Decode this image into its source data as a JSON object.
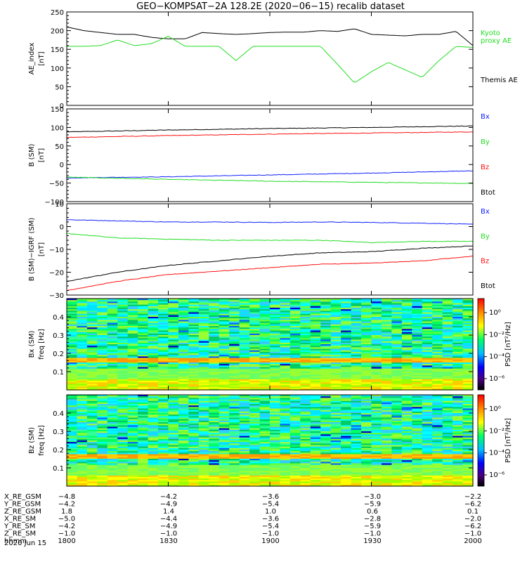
{
  "title": "GEO−KOMPSAT−2A 128.2E (2020−06−15) recalib dataset",
  "colors": {
    "black": "#000000",
    "green": "#22dd22",
    "red": "#ff1111",
    "blue": "#1122ff"
  },
  "panels": [
    {
      "id": "ae",
      "ylabel": [
        "AE_index",
        "[nT]"
      ],
      "ylim": [
        0,
        250
      ],
      "yticks": [
        0,
        50,
        100,
        150,
        200,
        250
      ],
      "legend": [
        {
          "text": "Kyoto",
          "color": "#22dd22"
        },
        {
          "text": "proxy AE",
          "color": "#22dd22"
        },
        {
          "text": "Themis AE",
          "color": "#000000"
        }
      ]
    },
    {
      "id": "bsm",
      "ylabel": [
        "B (SM)",
        "[nT]"
      ],
      "ylim": [
        -100,
        150
      ],
      "yticks": [
        -100,
        -50,
        0,
        50,
        100,
        150
      ],
      "legend": [
        {
          "text": "Bx",
          "color": "#1122ff"
        },
        {
          "text": "By",
          "color": "#22dd22"
        },
        {
          "text": "Bz",
          "color": "#ff1111"
        },
        {
          "text": "Btot",
          "color": "#000000"
        }
      ]
    },
    {
      "id": "bigrf",
      "ylabel": [
        "B (SM)−IGRF (SM)",
        "[nT]"
      ],
      "ylim": [
        -30,
        10
      ],
      "yticks": [
        -30,
        -20,
        -10,
        0,
        10
      ],
      "legend": [
        {
          "text": "Bx",
          "color": "#1122ff"
        },
        {
          "text": "By",
          "color": "#22dd22"
        },
        {
          "text": "Bz",
          "color": "#ff1111"
        },
        {
          "text": "Btot",
          "color": "#000000"
        }
      ]
    },
    {
      "id": "specbx",
      "ylabel": [
        "Bx (SM)",
        "freq [Hz]"
      ],
      "ylim": [
        0,
        0.5
      ],
      "yticks": [
        0.1,
        0.2,
        0.3,
        0.4
      ],
      "cbar_label": "PSD [nT²/Hz]",
      "cbar_ticks": [
        "10⁰",
        "10⁻²",
        "10⁻⁴",
        "10⁻⁶"
      ]
    },
    {
      "id": "specbz",
      "ylabel": [
        "Bz (SM)",
        "freq [Hz]"
      ],
      "ylim": [
        0,
        0.5
      ],
      "yticks": [
        0.1,
        0.2,
        0.3,
        0.4
      ],
      "cbar_label": "PSD [nT²/Hz]",
      "cbar_ticks": [
        "10⁰",
        "10⁻²",
        "10⁻⁴",
        "10⁻⁶"
      ]
    }
  ],
  "chart_data": [
    {
      "type": "line",
      "title": "GEO−KOMPSAT−2A 128.2E (2020−06−15) recalib dataset",
      "ylabel": "AE_index [nT]",
      "x": [
        "18:00",
        "18:05",
        "18:10",
        "18:15",
        "18:20",
        "18:25",
        "18:30",
        "18:35",
        "18:40",
        "18:45",
        "18:50",
        "18:55",
        "19:00",
        "19:05",
        "19:10",
        "19:15",
        "19:20",
        "19:25",
        "19:30",
        "19:35",
        "19:40",
        "19:45",
        "19:50",
        "19:55",
        "20:00"
      ],
      "ylim": [
        0,
        250
      ],
      "series": [
        {
          "name": "Themis AE",
          "color": "#000000",
          "values": [
            210,
            200,
            195,
            190,
            190,
            182,
            178,
            178,
            195,
            192,
            190,
            192,
            195,
            196,
            196,
            200,
            198,
            205,
            190,
            188,
            186,
            190,
            190,
            198,
            160
          ]
        },
        {
          "name": "Kyoto proxy AE",
          "color": "#22dd22",
          "values": [
            158,
            158,
            160,
            175,
            160,
            165,
            185,
            158,
            158,
            158,
            120,
            158,
            158,
            158,
            158,
            158,
            110,
            60,
            90,
            115,
            95,
            75,
            120,
            158,
            155
          ]
        }
      ]
    },
    {
      "type": "line",
      "ylabel": "B (SM) [nT]",
      "x": [
        "18:00",
        "18:30",
        "19:00",
        "19:30",
        "20:00"
      ],
      "ylim": [
        -100,
        150
      ],
      "series": [
        {
          "name": "Btot",
          "color": "#000000",
          "values": [
            88,
            93,
            97,
            100,
            104
          ]
        },
        {
          "name": "Bz",
          "color": "#ff1111",
          "values": [
            73,
            78,
            82,
            85,
            88
          ]
        },
        {
          "name": "Bx",
          "color": "#1122ff",
          "values": [
            -36,
            -33,
            -28,
            -23,
            -17
          ]
        },
        {
          "name": "By",
          "color": "#22dd22",
          "values": [
            -34,
            -40,
            -45,
            -48,
            -51
          ]
        }
      ]
    },
    {
      "type": "line",
      "ylabel": "B (SM)−IGRF (SM) [nT]",
      "x": [
        "18:00",
        "18:15",
        "18:30",
        "18:45",
        "19:00",
        "19:15",
        "19:30",
        "19:45",
        "20:00"
      ],
      "ylim": [
        -30,
        10
      ],
      "series": [
        {
          "name": "Bx",
          "color": "#1122ff",
          "values": [
            3,
            2.5,
            2,
            2,
            1.8,
            2,
            1.8,
            1.5,
            1
          ]
        },
        {
          "name": "By",
          "color": "#22dd22",
          "values": [
            -3,
            -5,
            -5.5,
            -6,
            -6,
            -6,
            -7,
            -6.5,
            -6.5
          ]
        },
        {
          "name": "Btot",
          "color": "#000000",
          "values": [
            -24,
            -20,
            -17,
            -15,
            -13,
            -11.5,
            -11,
            -9.5,
            -8.5
          ]
        },
        {
          "name": "Bz",
          "color": "#ff1111",
          "values": [
            -28,
            -24,
            -21,
            -19.5,
            -18,
            -16.5,
            -16,
            -15,
            -13
          ]
        }
      ]
    },
    {
      "type": "heatmap",
      "ylabel": "Bx (SM) freq [Hz]",
      "ylim": [
        0,
        0.5
      ],
      "colorbar": "PSD [nT²/Hz]",
      "band_hz": 0.16
    },
    {
      "type": "heatmap",
      "ylabel": "Bz (SM) freq [Hz]",
      "ylim": [
        0,
        0.5
      ],
      "colorbar": "PSD [nT²/Hz]",
      "band_hz": 0.16
    }
  ],
  "xaxis": {
    "ticks": [
      "1800",
      "1830",
      "1900",
      "1930",
      "2000"
    ],
    "rows": [
      {
        "label": "X_RE_GSM",
        "values": [
          "−4.8",
          "−4.2",
          "−3.6",
          "−3.0",
          "−2.2"
        ]
      },
      {
        "label": "Y_RE_GSM",
        "values": [
          "−4.2",
          "−4.9",
          "−5.4",
          "−5.9",
          "−6.2"
        ]
      },
      {
        "label": "Z_RE_GSM",
        "values": [
          "1.8",
          "1.4",
          "1.0",
          "0.6",
          "0.1"
        ]
      },
      {
        "label": "X_RE_SM",
        "values": [
          "−5.0",
          "−4.4",
          "−3.6",
          "−2.8",
          "−2.0"
        ]
      },
      {
        "label": "Y_RE_SM",
        "values": [
          "−4.2",
          "−4.9",
          "−5.4",
          "−5.9",
          "−6.2"
        ]
      },
      {
        "label": "Z_RE_SM",
        "values": [
          "−1.0",
          "−1.0",
          "−1.0",
          "−1.0",
          "−1.0"
        ]
      },
      {
        "label": "hhmm",
        "values": [
          "1800",
          "1830",
          "1900",
          "1930",
          "2000"
        ]
      }
    ],
    "date": "2020 Jun 15"
  }
}
